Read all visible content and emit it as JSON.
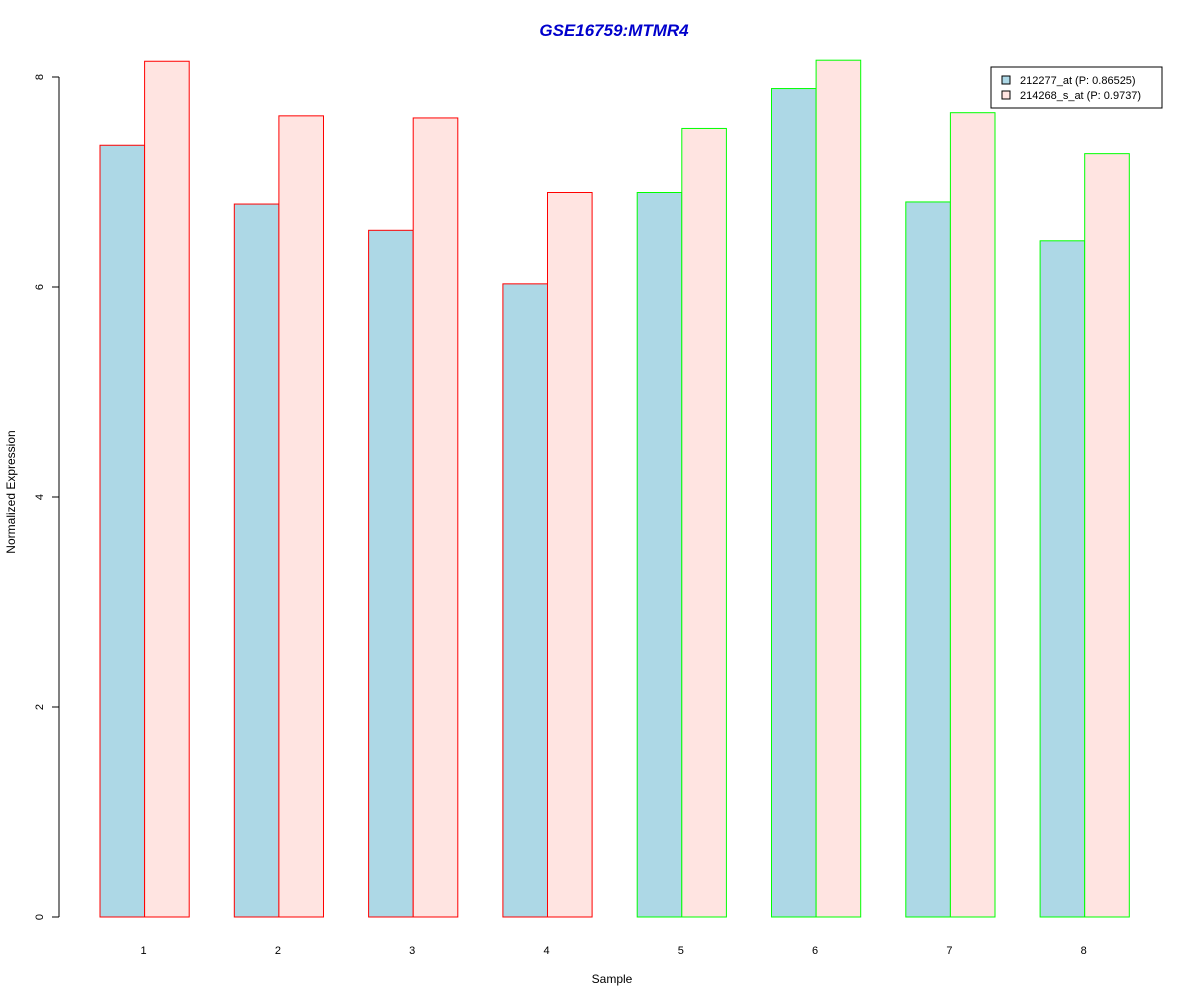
{
  "chart_data": {
    "type": "bar",
    "title": "GSE16759:MTMR4",
    "xlabel": "Sample",
    "ylabel": "Normalized Expression",
    "categories": [
      "1",
      "2",
      "3",
      "4",
      "5",
      "6",
      "7",
      "8"
    ],
    "series": [
      {
        "name": "212277_at (P: 0.86525)",
        "values": [
          7.35,
          6.79,
          6.54,
          6.03,
          6.9,
          7.89,
          6.81,
          6.44
        ],
        "fill": "#add8e6"
      },
      {
        "name": "214268_s_at (P: 0.9737)",
        "values": [
          8.15,
          7.63,
          7.61,
          6.9,
          7.51,
          8.16,
          7.66,
          7.27
        ],
        "fill": "#ffe4e1"
      }
    ],
    "group_border_colors": [
      "#ff0000",
      "#ff0000",
      "#ff0000",
      "#ff0000",
      "#00ff00",
      "#00ff00",
      "#00ff00",
      "#00ff00"
    ],
    "ylim": [
      0,
      8.16
    ],
    "yticks": [
      0,
      2,
      4,
      6,
      8
    ],
    "legend_position": "top-right",
    "grid": false,
    "title_color": "#0000cc"
  }
}
